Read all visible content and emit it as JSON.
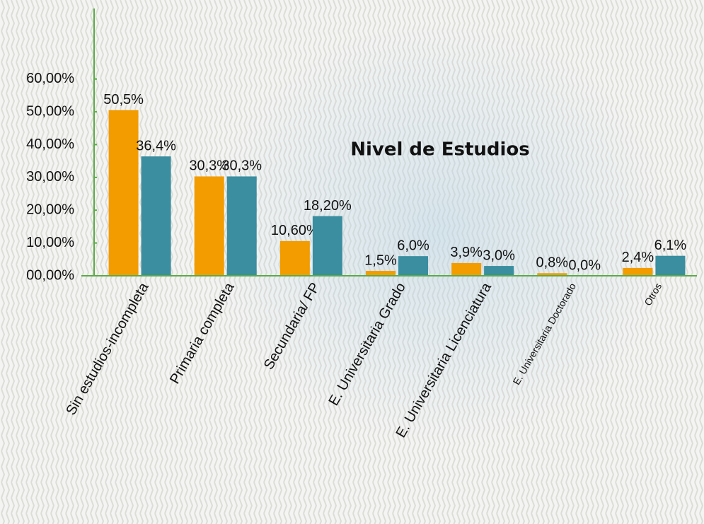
{
  "chart_data": {
    "type": "bar",
    "title": "Nivel de Estudios",
    "categories": [
      "Sin estudios-incompleta",
      "Primaria completa",
      "Secundaria/ FP",
      "E. Universitaria Grado",
      "E. Universitaria Licenciatura",
      "E. Universitaria Doctorado",
      "Otros"
    ],
    "series": [
      {
        "color": "#f29c00",
        "values": [
          50.5,
          30.3,
          10.6,
          1.5,
          3.9,
          0.8,
          2.4
        ],
        "value_labels": [
          "50,5%",
          "30,3%",
          "10,60%",
          "1,5%",
          "3,9%",
          "0,8%",
          "2,4%"
        ]
      },
      {
        "color": "#3a8ea0",
        "values": [
          36.4,
          30.3,
          18.2,
          6.0,
          3.0,
          0.0,
          6.1
        ],
        "value_labels": [
          "36,4%",
          "30,3%",
          "18,20%",
          "6,0%",
          "3,0%",
          "0,0%",
          "6,1%"
        ]
      }
    ],
    "ylim": [
      0,
      81.5
    ],
    "yticks": [
      {
        "value": 0,
        "label": "00,00%"
      },
      {
        "value": 10,
        "label": "10,00%"
      },
      {
        "value": 20,
        "label": "20,00%"
      },
      {
        "value": 30,
        "label": "30,00%"
      },
      {
        "value": 40,
        "label": "40,00%"
      },
      {
        "value": 50,
        "label": "50,00%"
      },
      {
        "value": 60,
        "label": "60,00%"
      }
    ],
    "axis_color": "#5aab46"
  }
}
